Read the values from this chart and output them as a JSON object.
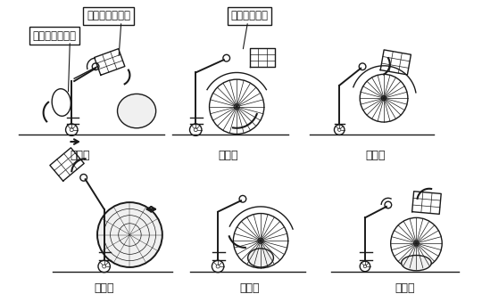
{
  "title": "",
  "background_color": "#ffffff",
  "labels": {
    "upper_arm": "アッパーアーム",
    "side_arm": "サイドアーム",
    "turntable": "ターンテーブル",
    "a": "（ａ）",
    "b": "（ｂ）",
    "c": "（ｃ）",
    "d": "（ｄ）",
    "e": "（ｅ）",
    "f": "（ｆ）"
  },
  "figure_size": [
    5.4,
    3.3
  ],
  "dpi": 100,
  "line_color": "#1a1a1a",
  "box_facecolor": "#ffffff",
  "box_edgecolor": "#1a1a1a",
  "arrow_color": "#111111"
}
